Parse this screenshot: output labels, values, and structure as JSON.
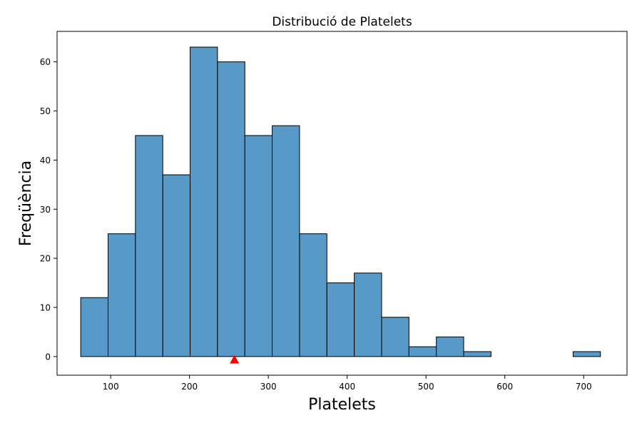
{
  "chart_data": {
    "type": "bar",
    "title": "Distribució de Platelets",
    "xlabel": "Platelets",
    "ylabel": "Freqüència",
    "xlim": [
      32,
      755
    ],
    "ylim": [
      -3.8,
      66.2
    ],
    "xticks": [
      100,
      200,
      300,
      400,
      500,
      600,
      700
    ],
    "yticks": [
      0,
      10,
      20,
      30,
      40,
      50,
      60
    ],
    "bin_edges": [
      62,
      96.7,
      131.4,
      166.1,
      200.8,
      235.5,
      270.2,
      304.9,
      339.6,
      374.3,
      409.0,
      443.7,
      478.4,
      513.1,
      547.8,
      582.5,
      617.2,
      651.9,
      686.6,
      721.3
    ],
    "values": [
      12,
      25,
      45,
      37,
      63,
      60,
      45,
      47,
      25,
      15,
      17,
      8,
      2,
      4,
      1,
      0,
      0,
      0,
      1
    ],
    "marker": {
      "x": 257,
      "y": -0.6,
      "color": "#ff0000",
      "shape": "triangle"
    },
    "bar_color": "#5799c7",
    "edge_color": "#000000",
    "grid": false
  }
}
